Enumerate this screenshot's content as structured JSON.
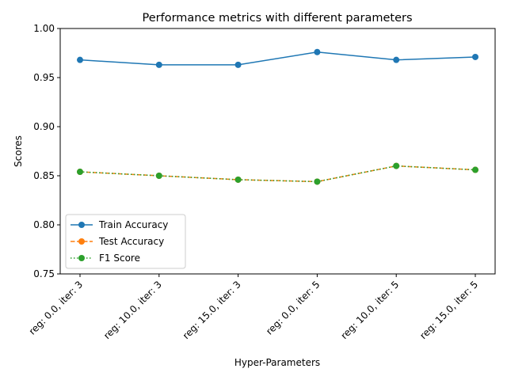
{
  "chart_data": {
    "type": "line",
    "title": "Performance metrics with different parameters",
    "xlabel": "Hyper-Parameters",
    "ylabel": "Scores",
    "ylim": [
      0.75,
      1.0
    ],
    "yticks": [
      "0.75",
      "0.80",
      "0.85",
      "0.90",
      "0.95",
      "1.00"
    ],
    "ytick_values": [
      0.75,
      0.8,
      0.85,
      0.9,
      0.95,
      1.0
    ],
    "categories": [
      "reg: 0.0, iter: 3",
      "reg: 10.0, iter: 3",
      "reg: 15.0, iter: 3",
      "reg: 0.0, iter: 5",
      "reg: 10.0, iter: 5",
      "reg: 15.0, iter: 5"
    ],
    "series": [
      {
        "name": "Train Accuracy",
        "values": [
          0.968,
          0.963,
          0.963,
          0.976,
          0.968,
          0.971
        ],
        "color": "#1f77b4",
        "linestyle": "solid"
      },
      {
        "name": "Test Accuracy",
        "values": [
          0.854,
          0.85,
          0.846,
          0.844,
          0.86,
          0.856
        ],
        "color": "#ff7f0e",
        "linestyle": "dashed"
      },
      {
        "name": "F1 Score",
        "values": [
          0.854,
          0.85,
          0.846,
          0.844,
          0.86,
          0.856
        ],
        "color": "#2ca02c",
        "linestyle": "dotted"
      }
    ],
    "legend_position": "lower-left",
    "grid": false
  }
}
